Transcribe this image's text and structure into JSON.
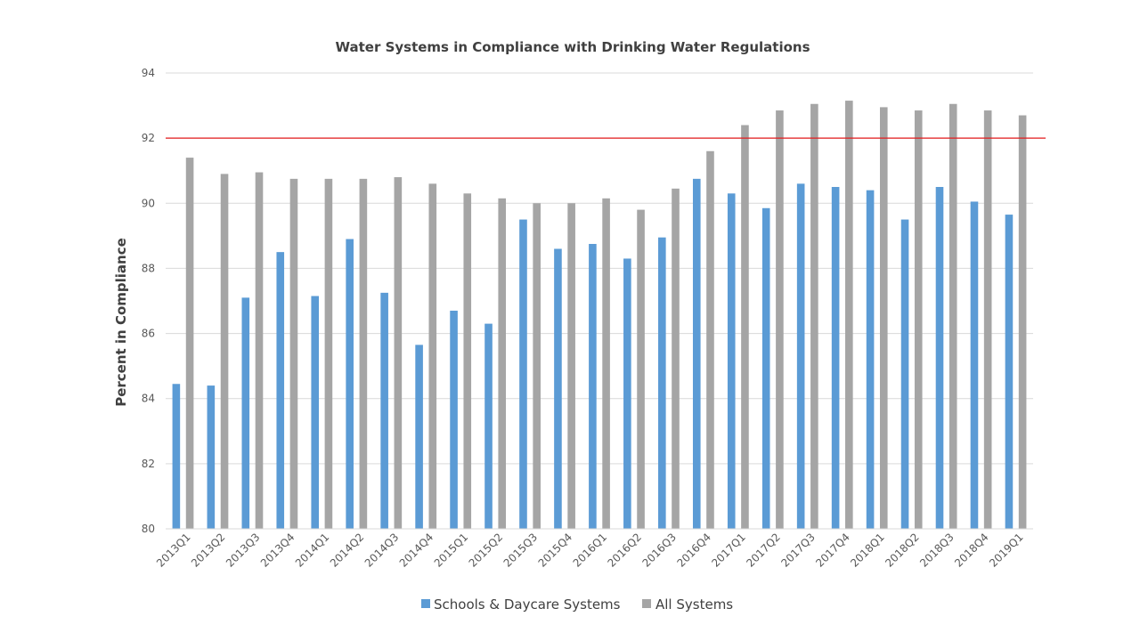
{
  "chart_data": {
    "type": "bar",
    "title": "Water Systems in Compliance with Drinking Water Regulations",
    "xlabel": "",
    "ylabel": "Percent in Compliance",
    "ylim": [
      80,
      94
    ],
    "yticks": [
      80,
      82,
      84,
      86,
      88,
      90,
      92,
      94
    ],
    "grid": true,
    "legend_position": "bottom",
    "categories": [
      "2013Q1",
      "2013Q2",
      "2013Q3",
      "2013Q4",
      "2014Q1",
      "2014Q2",
      "2014Q3",
      "2014Q4",
      "2015Q1",
      "2015Q2",
      "2015Q3",
      "2015Q4",
      "2016Q1",
      "2016Q2",
      "2016Q3",
      "2016Q4",
      "2017Q1",
      "2017Q2",
      "2017Q3",
      "2017Q4",
      "2018Q1",
      "2018Q2",
      "2018Q3",
      "2018Q4",
      "2019Q1"
    ],
    "series": [
      {
        "name": "Schools & Daycare Systems",
        "color": "#5b9bd5",
        "values": [
          84.45,
          84.4,
          87.1,
          88.5,
          87.15,
          88.9,
          87.25,
          85.65,
          86.7,
          86.3,
          89.5,
          88.6,
          88.75,
          88.3,
          88.95,
          90.75,
          90.3,
          89.85,
          90.6,
          90.5,
          90.4,
          89.5,
          90.5,
          90.05,
          89.65
        ]
      },
      {
        "name": "All Systems",
        "color": "#a5a5a5",
        "values": [
          91.4,
          90.9,
          90.95,
          90.75,
          90.75,
          90.75,
          90.8,
          90.6,
          90.3,
          90.15,
          90.0,
          90.0,
          90.15,
          89.8,
          90.45,
          91.6,
          92.4,
          92.85,
          93.05,
          93.15,
          92.95,
          92.85,
          93.05,
          92.85,
          92.7
        ]
      }
    ],
    "reference_line": {
      "value": 92,
      "color": "#e31a1c"
    }
  }
}
